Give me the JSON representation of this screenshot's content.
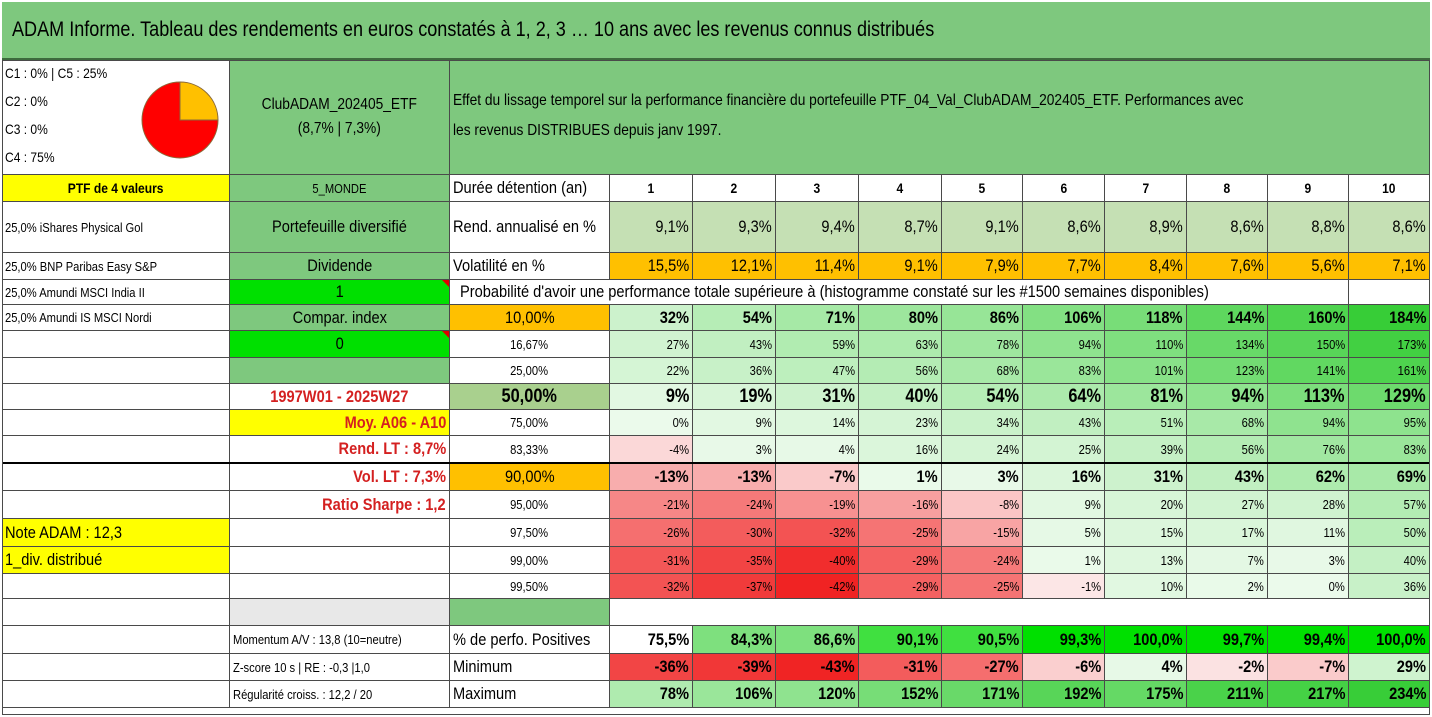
{
  "title": "ADAM Informe. Tableau des rendements en euros constatés à 1, 2, 3 … 10 ans avec les revenus connus distribués",
  "header": {
    "classes": [
      "C1 : 0% | C5 : 25%",
      "C2 : 0%",
      "C3 : 0%",
      "C4 : 75%"
    ],
    "pie_shares": [
      0.25,
      0.75
    ],
    "pie_colors": [
      "#ffc000",
      "#ff0000"
    ],
    "portfolio_name": "ClubADAM_202405_ETF",
    "portfolio_stats": "(8,7% | 7,3%)",
    "description_line1": "Effet du lissage temporel sur la performance financière du portefeuille PTF_04_Val_ClubADAM_202405_ETF. Performances avec",
    "description_line2": "les revenus DISTRIBUES depuis janv 1997."
  },
  "left": {
    "ptf_label": "PTF de 4 valeurs",
    "holdings": [
      "25,0% iShares Physical Gol",
      "25,0% BNP Paribas Easy S&P",
      "25,0% Amundi MSCI India II",
      "25,0% Amundi IS MSCI Nordi"
    ]
  },
  "mid": {
    "zone": "5_MONDE",
    "type": "Portefeuille diversifié",
    "dividend_label": "Dividende",
    "dividend_value": "1",
    "compar_label": "Compar. index",
    "compar_value": "0",
    "period": "1997W01 - 2025W27",
    "moy": "Moy. A06 - A10",
    "rend_lt": "Rend. LT : 8,7%",
    "vol_lt": "Vol. LT : 7,3%",
    "sharpe": "Ratio Sharpe : 1,2",
    "note": "Note ADAM : 12,3",
    "div_distribue": "1_div. distribué",
    "momentum": "Momentum A/V : 13,8 (10=neutre)",
    "zscore": "Z-score 10 s | RE : -0,3 |1,0",
    "regularite": "Régularité croiss. : 12,2 / 20"
  },
  "table": {
    "years_label": "Durée détention (an)",
    "years": [
      "1",
      "2",
      "3",
      "4",
      "5",
      "6",
      "7",
      "8",
      "9",
      "10"
    ],
    "rend_label": "Rend. annualisé en %",
    "rend": [
      "9,1%",
      "9,3%",
      "9,4%",
      "8,7%",
      "9,1%",
      "8,6%",
      "8,9%",
      "8,6%",
      "8,8%",
      "8,6%"
    ],
    "vol_label": "Volatilité en %",
    "vol": [
      "15,5%",
      "12,1%",
      "11,4%",
      "9,1%",
      "7,9%",
      "7,7%",
      "8,4%",
      "7,6%",
      "5,6%",
      "7,1%"
    ],
    "proba_label": "Probabilité d'avoir une performance totale supérieure à (histogramme constaté sur les #1500 semaines disponibles)",
    "proba_rows": [
      {
        "p": "10,00%",
        "v": [
          "32%",
          "54%",
          "71%",
          "80%",
          "86%",
          "106%",
          "118%",
          "144%",
          "160%",
          "184%"
        ]
      },
      {
        "p": "16,67%",
        "v": [
          "27%",
          "43%",
          "59%",
          "63%",
          "78%",
          "94%",
          "110%",
          "134%",
          "150%",
          "173%"
        ]
      },
      {
        "p": "25,00%",
        "v": [
          "22%",
          "36%",
          "47%",
          "56%",
          "68%",
          "83%",
          "101%",
          "123%",
          "141%",
          "161%"
        ]
      },
      {
        "p": "50,00%",
        "v": [
          "9%",
          "19%",
          "31%",
          "40%",
          "54%",
          "64%",
          "81%",
          "94%",
          "113%",
          "129%"
        ]
      },
      {
        "p": "75,00%",
        "v": [
          "0%",
          "9%",
          "14%",
          "23%",
          "34%",
          "43%",
          "51%",
          "68%",
          "94%",
          "95%"
        ]
      },
      {
        "p": "83,33%",
        "v": [
          "-4%",
          "3%",
          "4%",
          "16%",
          "24%",
          "25%",
          "39%",
          "56%",
          "76%",
          "83%"
        ]
      },
      {
        "p": "90,00%",
        "v": [
          "-13%",
          "-13%",
          "-7%",
          "1%",
          "3%",
          "16%",
          "31%",
          "43%",
          "62%",
          "69%"
        ]
      },
      {
        "p": "95,00%",
        "v": [
          "-21%",
          "-24%",
          "-19%",
          "-16%",
          "-8%",
          "9%",
          "20%",
          "27%",
          "28%",
          "57%"
        ]
      },
      {
        "p": "97,50%",
        "v": [
          "-26%",
          "-30%",
          "-32%",
          "-25%",
          "-15%",
          "5%",
          "15%",
          "17%",
          "11%",
          "50%"
        ]
      },
      {
        "p": "99,00%",
        "v": [
          "-31%",
          "-35%",
          "-40%",
          "-29%",
          "-24%",
          "1%",
          "13%",
          "7%",
          "3%",
          "40%"
        ]
      },
      {
        "p": "99,50%",
        "v": [
          "-32%",
          "-37%",
          "-42%",
          "-29%",
          "-25%",
          "-1%",
          "10%",
          "2%",
          "0%",
          "36%"
        ]
      }
    ],
    "pos_label": "% de perfo. Positives",
    "pos": [
      "75,5%",
      "84,3%",
      "86,6%",
      "90,1%",
      "90,5%",
      "99,3%",
      "100,0%",
      "99,7%",
      "99,4%",
      "100,0%"
    ],
    "min_label": "Minimum",
    "min": [
      "-36%",
      "-39%",
      "-43%",
      "-31%",
      "-27%",
      "-6%",
      "4%",
      "-2%",
      "-7%",
      "29%"
    ],
    "max_label": "Maximum",
    "max": [
      "78%",
      "106%",
      "120%",
      "152%",
      "171%",
      "192%",
      "175%",
      "211%",
      "217%",
      "234%"
    ]
  }
}
